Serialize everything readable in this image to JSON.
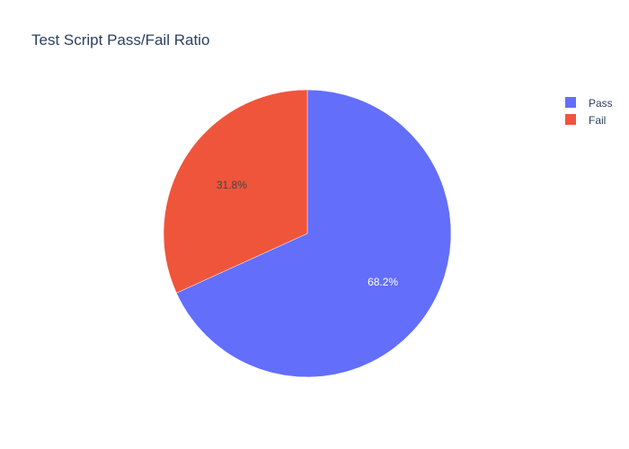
{
  "chart_data": {
    "type": "pie",
    "title": "Test Script Pass/Fail Ratio",
    "slices": [
      {
        "label": "Pass",
        "value": 68.2,
        "color": "#636efa",
        "text_color": "#ffffff"
      },
      {
        "label": "Fail",
        "value": 31.8,
        "color": "#ef553b",
        "text_color": "#444444"
      }
    ],
    "value_format": "percent",
    "start": "12 o'clock",
    "direction": "clockwise",
    "legend": {
      "position": "top-right",
      "entries": [
        "Pass",
        "Fail"
      ]
    }
  }
}
